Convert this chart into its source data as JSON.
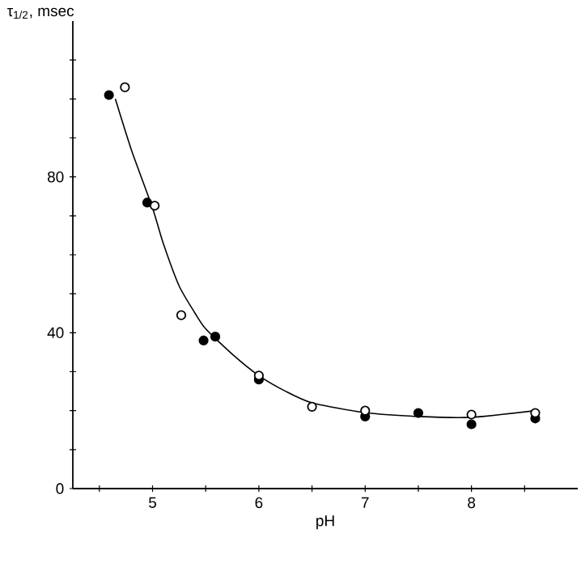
{
  "chart_data": {
    "type": "scatter",
    "xlabel": "pH",
    "ylabel": "τ$_{1/2}$, msec",
    "xlim": [
      4.25,
      9.0
    ],
    "ylim": [
      0,
      120
    ],
    "xticks": [
      {
        "value": 4.5,
        "label": null
      },
      5,
      {
        "value": 5.5,
        "label": null
      },
      6,
      {
        "value": 6.5,
        "label": null
      },
      7,
      {
        "value": 7.5,
        "label": null
      },
      8,
      {
        "value": 8.5,
        "label": null
      }
    ],
    "yticks": [
      0,
      {
        "value": 10,
        "label": null
      },
      {
        "value": 20,
        "label": null
      },
      {
        "value": 30,
        "label": null
      },
      40,
      {
        "value": 50,
        "label": null
      },
      {
        "value": 60,
        "label": null
      },
      {
        "value": 70,
        "label": null
      },
      80,
      {
        "value": 90,
        "label": null
      },
      {
        "value": 100,
        "label": null
      },
      {
        "value": 110,
        "label": null
      }
    ],
    "series": [
      {
        "marker": "circle",
        "color": "#000000",
        "x": [
          4.59,
          4.95,
          5.48,
          5.59,
          6.0,
          7.0,
          7.5,
          8.0,
          8.6
        ],
        "values": [
          101,
          73.4,
          38,
          39,
          28,
          18.5,
          19.4,
          16.5,
          18
        ]
      },
      {
        "marker": "circle",
        "color": "#ffffff",
        "x": [
          4.74,
          5.02,
          5.27,
          6.0,
          6.5,
          7.0,
          8.0,
          8.6
        ],
        "values": [
          103,
          72.6,
          44.5,
          29,
          21,
          20,
          19,
          19.4
        ]
      },
      {
        "type": "line",
        "marker": "none",
        "color": "#000000",
        "x": [
          4.65,
          4.8,
          5.0,
          5.1,
          5.25,
          5.4,
          5.5,
          5.75,
          6.0,
          6.25,
          6.5,
          7.0,
          7.5,
          8.0,
          8.6
        ],
        "values": [
          100,
          87,
          72,
          63,
          52,
          45,
          41,
          34.5,
          29,
          25,
          22,
          19.5,
          18.5,
          18.3,
          20
        ]
      }
    ]
  }
}
